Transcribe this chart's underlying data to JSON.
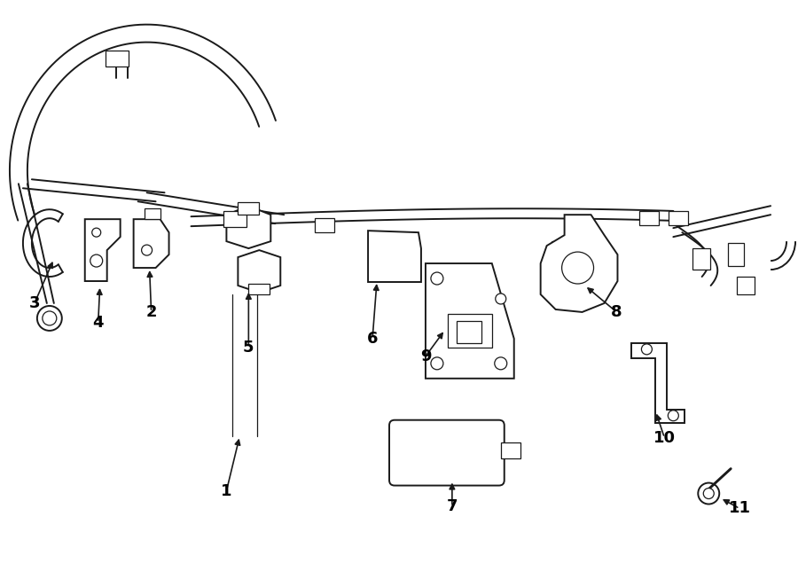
{
  "background_color": "#ffffff",
  "line_color": "#1a1a1a",
  "text_color": "#000000",
  "fig_width": 9.0,
  "fig_height": 6.62,
  "dpi": 100,
  "lw_main": 1.4,
  "lw_thin": 0.9,
  "label_fontsize": 13
}
